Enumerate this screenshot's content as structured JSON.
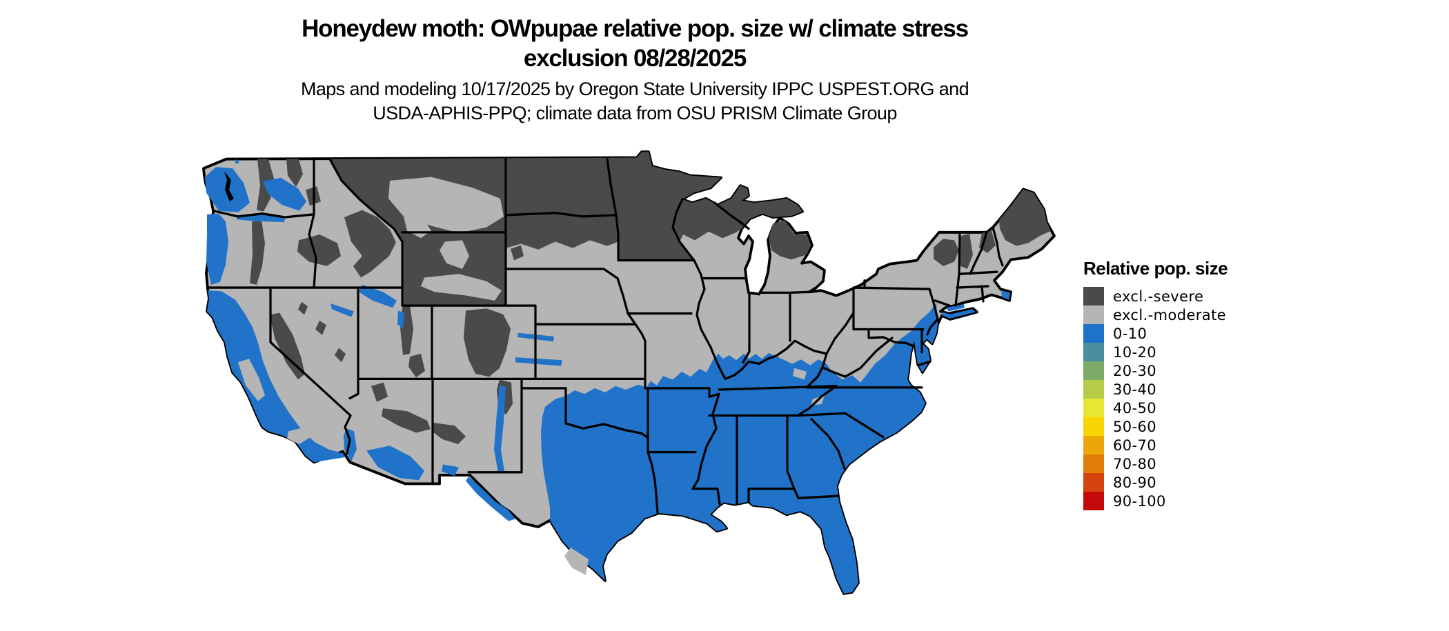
{
  "title": {
    "line1": "Honeydew moth: OWpupae relative pop. size w/ climate stress",
    "line2": "exclusion 08/28/2025"
  },
  "subtitle": {
    "line1": "Maps and modeling 10/17/2025 by Oregon State University IPPC USPEST.ORG and",
    "line2": "USDA-APHIS-PPQ; climate data from OSU PRISM Climate Group"
  },
  "legend": {
    "title": "Relative pop. size",
    "items": [
      {
        "label": "excl.-severe",
        "color": "#4a4a4a"
      },
      {
        "label": "excl.-moderate",
        "color": "#b5b5b5"
      },
      {
        "label": "0-10",
        "color": "#1e73c9"
      },
      {
        "label": "10-20",
        "color": "#4a8f9e"
      },
      {
        "label": "20-30",
        "color": "#7cab68"
      },
      {
        "label": "30-40",
        "color": "#b6cc48"
      },
      {
        "label": "40-50",
        "color": "#e7e632"
      },
      {
        "label": "50-60",
        "color": "#f6d405"
      },
      {
        "label": "60-70",
        "color": "#eca50a"
      },
      {
        "label": "70-80",
        "color": "#e17d08"
      },
      {
        "label": "80-90",
        "color": "#d5430e"
      },
      {
        "label": "90-100",
        "color": "#c40a0a"
      }
    ]
  },
  "map": {
    "region": "Contiguous United States",
    "date_shown": "08/28/2025",
    "colors": {
      "excl_severe": "#4a4a4a",
      "excl_moderate": "#b5b5b5",
      "pop_0_10": "#2173c9",
      "boundary": "#000000"
    }
  }
}
